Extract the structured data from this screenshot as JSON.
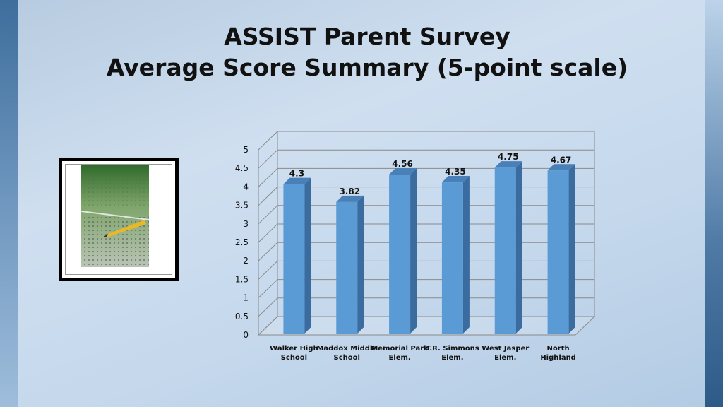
{
  "slide": {
    "title_line1": "ASSIST Parent Survey",
    "title_line2": "Average Score Summary (5-point scale)"
  },
  "chart_data": {
    "type": "bar",
    "categories": [
      "Walker High School",
      "Maddox Middle School",
      "Memorial Park Elem.",
      "T.R. Simmons Elem.",
      "West Jasper Elem.",
      "North Highland"
    ],
    "values": [
      4.3,
      3.82,
      4.56,
      4.35,
      4.75,
      4.67
    ],
    "value_labels": [
      "4.3",
      "3.82",
      "4.56",
      "4.35",
      "4.75",
      "4.67"
    ],
    "yticks": [
      "0",
      "0.5",
      "1",
      "1.5",
      "2",
      "2.5",
      "3",
      "3.5",
      "4",
      "4.5",
      "5"
    ],
    "ylim": [
      0,
      5
    ],
    "grid": true,
    "bar_color": "#5b9bd5",
    "bar_side_color": "#3b6c9f",
    "bar_top_color": "#4a80b8"
  }
}
